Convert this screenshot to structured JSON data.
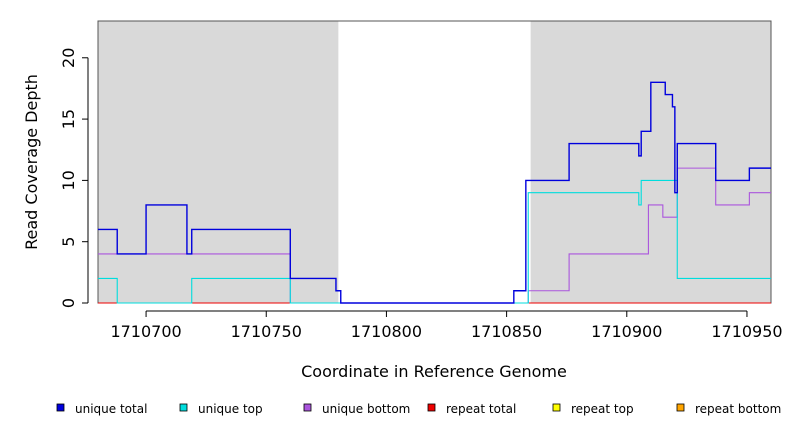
{
  "chart_data": {
    "type": "line",
    "title": "",
    "xlabel": "Coordinate in Reference Genome",
    "ylabel": "Read Coverage Depth",
    "xlim": [
      1710680,
      1710960
    ],
    "ylim": [
      0,
      23
    ],
    "x_ticks": [
      1710700,
      1710750,
      1710800,
      1710850,
      1710900,
      1710950
    ],
    "y_ticks": [
      0,
      5,
      10,
      15,
      20
    ],
    "shaded_regions": [
      [
        1710680,
        1710780
      ],
      [
        1710860,
        1710960
      ]
    ],
    "shade_color": "#d9d9d9",
    "grid": false,
    "legend_position": "bottom",
    "series": [
      {
        "name": "unique total",
        "color": "#0000dd",
        "points": [
          [
            1710680,
            6
          ],
          [
            1710688,
            4
          ],
          [
            1710700,
            8
          ],
          [
            1710717,
            4
          ],
          [
            1710719,
            6
          ],
          [
            1710760,
            2
          ],
          [
            1710779,
            1
          ],
          [
            1710781,
            0
          ],
          [
            1710853,
            1
          ],
          [
            1710858,
            10
          ],
          [
            1710876,
            13
          ],
          [
            1710905,
            12
          ],
          [
            1710906,
            14
          ],
          [
            1710910,
            18
          ],
          [
            1710916,
            17
          ],
          [
            1710919,
            16
          ],
          [
            1710920,
            9
          ],
          [
            1710921,
            13
          ],
          [
            1710937,
            10
          ],
          [
            1710951,
            11
          ],
          [
            1710960,
            11
          ]
        ]
      },
      {
        "name": "unique top",
        "color": "#00dddd",
        "points": [
          [
            1710680,
            2
          ],
          [
            1710688,
            0
          ],
          [
            1710719,
            2
          ],
          [
            1710760,
            0
          ],
          [
            1710859,
            9
          ],
          [
            1710905,
            8
          ],
          [
            1710906,
            10
          ],
          [
            1710921,
            2
          ],
          [
            1710960,
            2
          ]
        ]
      },
      {
        "name": "unique bottom",
        "color": "#aa55dd",
        "points": [
          [
            1710680,
            4
          ],
          [
            1710760,
            0
          ],
          [
            1710859,
            1
          ],
          [
            1710876,
            4
          ],
          [
            1710909,
            8
          ],
          [
            1710915,
            7
          ],
          [
            1710921,
            11
          ],
          [
            1710937,
            8
          ],
          [
            1710951,
            9
          ],
          [
            1710960,
            9
          ]
        ]
      },
      {
        "name": "repeat total",
        "color": "#ee0000",
        "points": [
          [
            1710680,
            0
          ],
          [
            1710960,
            0
          ]
        ]
      },
      {
        "name": "repeat top",
        "color": "#ffff00",
        "points": [
          [
            1710680,
            0
          ],
          [
            1710960,
            0
          ]
        ]
      },
      {
        "name": "repeat bottom",
        "color": "#ffa500",
        "points": [
          [
            1710680,
            0
          ],
          [
            1710960,
            0
          ]
        ]
      }
    ]
  }
}
